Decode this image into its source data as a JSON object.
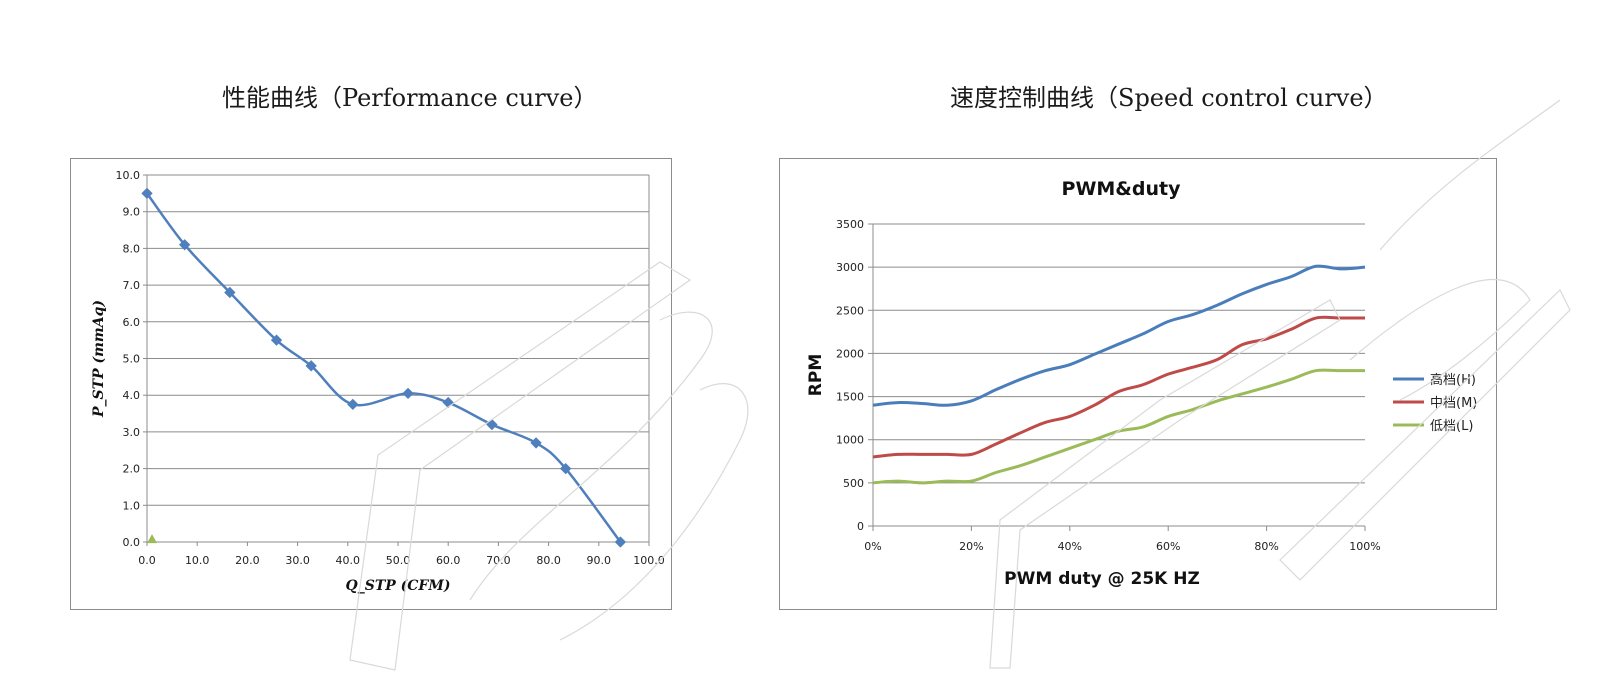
{
  "titles": {
    "left": "性能曲线（Performance curve）",
    "right": "速度控制曲线（Speed control curve）"
  },
  "colors": {
    "perf_line": "#4f7fbd",
    "grid": "#8c8c8c",
    "series_high": "#4a7ebb",
    "series_mid": "#be4b48",
    "series_low": "#9bbb59",
    "marker_triangle": "#9bbb59"
  },
  "chart_data": [
    {
      "type": "line",
      "title": "",
      "xlabel": "Q_STP (CFM)",
      "ylabel": "P_STP (mmAq)",
      "xlim": [
        0,
        100
      ],
      "ylim": [
        0,
        10
      ],
      "xticks": [
        "0.0",
        "10.0",
        "20.0",
        "30.0",
        "40.0",
        "50.0",
        "60.0",
        "70.0",
        "80.0",
        "90.0",
        "100.0"
      ],
      "yticks": [
        "0.0",
        "1.0",
        "2.0",
        "3.0",
        "4.0",
        "5.0",
        "6.0",
        "7.0",
        "8.0",
        "9.0",
        "10.0"
      ],
      "grid": true,
      "legend": "none",
      "series": [
        {
          "x": [
            0,
            7.5,
            16.5,
            25.8,
            32.7,
            41.0,
            52.0,
            60.0,
            68.7,
            77.5,
            83.4,
            94.3
          ],
          "y": [
            9.5,
            8.1,
            6.8,
            5.5,
            4.8,
            3.75,
            4.05,
            3.8,
            3.2,
            2.7,
            2.0,
            0.0
          ]
        }
      ],
      "extra_points": [
        {
          "x": 1.0,
          "y": 0.05
        }
      ]
    },
    {
      "type": "line",
      "title": "PWM&duty",
      "xlabel": "PWM duty @ 25K HZ",
      "ylabel": "RPM",
      "xlim": [
        0,
        100
      ],
      "ylim": [
        0,
        3500
      ],
      "xticks": [
        "0%",
        "20%",
        "40%",
        "60%",
        "80%",
        "100%"
      ],
      "yticks": [
        "0",
        "500",
        "1000",
        "1500",
        "2000",
        "2500",
        "3000",
        "3500"
      ],
      "grid": true,
      "legend": "right",
      "x": [
        0,
        5,
        10,
        15,
        20,
        25,
        30,
        35,
        40,
        45,
        50,
        55,
        60,
        65,
        70,
        75,
        80,
        85,
        90,
        95,
        100
      ],
      "series": [
        {
          "name": "高档(H)",
          "values": [
            1400,
            1430,
            1420,
            1400,
            1450,
            1580,
            1700,
            1800,
            1870,
            1990,
            2110,
            2230,
            2370,
            2450,
            2560,
            2690,
            2800,
            2890,
            3010,
            2980,
            3000
          ]
        },
        {
          "name": "中档(M)",
          "values": [
            800,
            830,
            830,
            830,
            830,
            950,
            1080,
            1200,
            1270,
            1400,
            1560,
            1640,
            1760,
            1840,
            1930,
            2100,
            2170,
            2280,
            2410,
            2410,
            2410
          ]
        },
        {
          "name": "低档(L)",
          "values": [
            500,
            520,
            500,
            520,
            520,
            620,
            700,
            800,
            900,
            1000,
            1100,
            1150,
            1270,
            1350,
            1450,
            1530,
            1610,
            1700,
            1800,
            1800,
            1800
          ]
        }
      ]
    }
  ]
}
